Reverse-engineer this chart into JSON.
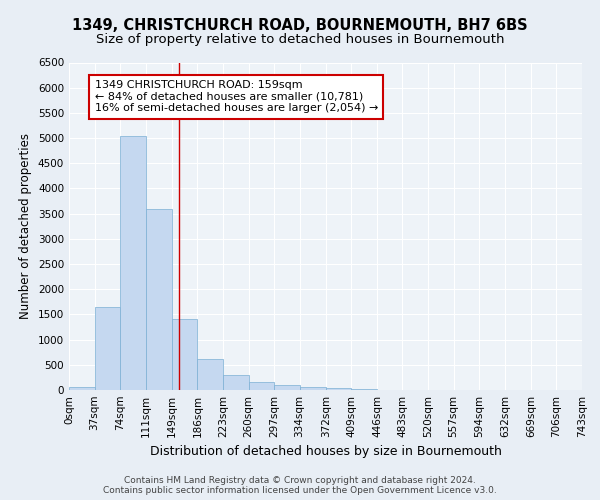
{
  "title1": "1349, CHRISTCHURCH ROAD, BOURNEMOUTH, BH7 6BS",
  "title2": "Size of property relative to detached houses in Bournemouth",
  "xlabel": "Distribution of detached houses by size in Bournemouth",
  "ylabel": "Number of detached properties",
  "footer1": "Contains HM Land Registry data © Crown copyright and database right 2024.",
  "footer2": "Contains public sector information licensed under the Open Government Licence v3.0.",
  "bar_left_edges": [
    0,
    37,
    74,
    111,
    149,
    186,
    223,
    260,
    297,
    334,
    372,
    409,
    446,
    483,
    520,
    557,
    594,
    632,
    669,
    706
  ],
  "bar_widths": [
    37,
    37,
    37,
    38,
    37,
    37,
    37,
    37,
    37,
    38,
    37,
    37,
    37,
    37,
    37,
    37,
    38,
    37,
    37,
    37
  ],
  "bar_heights": [
    55,
    1650,
    5050,
    3600,
    1400,
    610,
    300,
    150,
    100,
    55,
    30,
    10,
    5,
    0,
    0,
    0,
    0,
    0,
    0,
    0
  ],
  "bar_color": "#c5d8f0",
  "bar_edge_color": "#7bafd4",
  "x_tick_labels": [
    "0sqm",
    "37sqm",
    "74sqm",
    "111sqm",
    "149sqm",
    "186sqm",
    "223sqm",
    "260sqm",
    "297sqm",
    "334sqm",
    "372sqm",
    "409sqm",
    "446sqm",
    "483sqm",
    "520sqm",
    "557sqm",
    "594sqm",
    "632sqm",
    "669sqm",
    "706sqm",
    "743sqm"
  ],
  "x_tick_positions": [
    0,
    37,
    74,
    111,
    149,
    186,
    223,
    260,
    297,
    334,
    372,
    409,
    446,
    483,
    520,
    557,
    594,
    632,
    669,
    706,
    743
  ],
  "ylim": [
    0,
    6500
  ],
  "xlim": [
    0,
    743
  ],
  "yticks": [
    0,
    500,
    1000,
    1500,
    2000,
    2500,
    3000,
    3500,
    4000,
    4500,
    5000,
    5500,
    6000,
    6500
  ],
  "red_line_x": 159,
  "annotation_line1": "1349 CHRISTCHURCH ROAD: 159sqm",
  "annotation_line2": "← 84% of detached houses are smaller (10,781)",
  "annotation_line3": "16% of semi-detached houses are larger (2,054) →",
  "annotation_box_color": "#ffffff",
  "annotation_border_color": "#cc0000",
  "bg_color": "#e8eef5",
  "plot_bg_color": "#eef3f8",
  "grid_color": "#ffffff",
  "title_fontsize": 10.5,
  "subtitle_fontsize": 9.5,
  "ylabel_fontsize": 8.5,
  "xlabel_fontsize": 9,
  "tick_fontsize": 7.5,
  "annotation_fontsize": 8,
  "footer_fontsize": 6.5
}
